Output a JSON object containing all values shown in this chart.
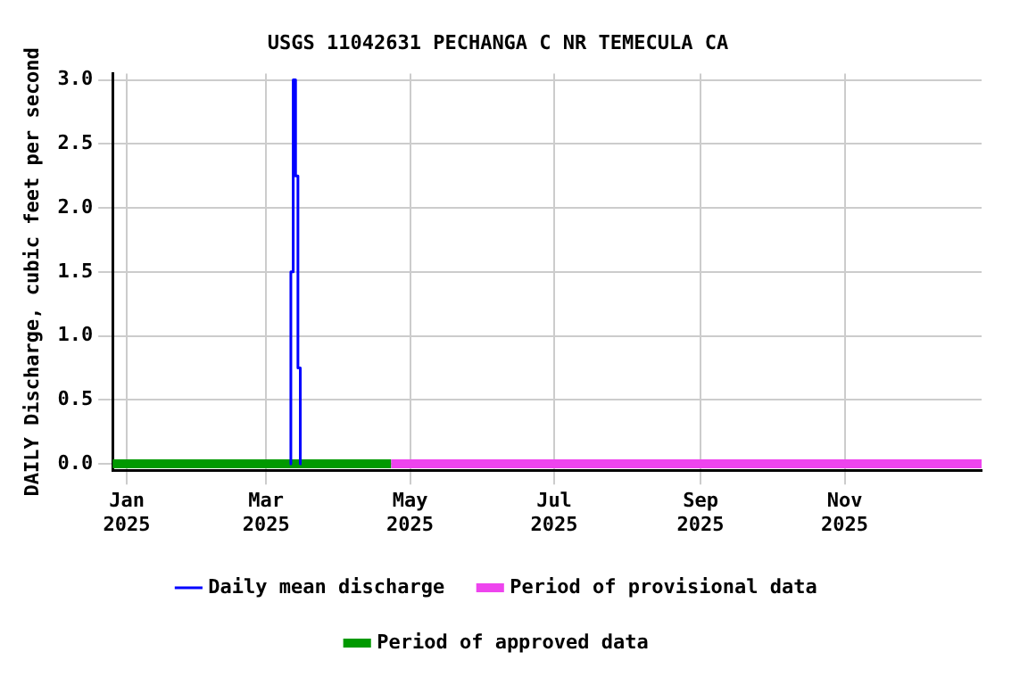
{
  "chart_data": {
    "type": "line",
    "title": "USGS 11042631 PECHANGA C NR TEMECULA CA",
    "ylabel": "DAILY Discharge, cubic feet per second",
    "xlim": [
      "2024-12-26",
      "2025-12-29"
    ],
    "xticks": [
      {
        "value": "2025-01-01",
        "label": "Jan 2025"
      },
      {
        "value": "2025-03-01",
        "label": "Mar 2025"
      },
      {
        "value": "2025-05-01",
        "label": "May 2025"
      },
      {
        "value": "2025-07-01",
        "label": "Jul 2025"
      },
      {
        "value": "2025-09-01",
        "label": "Sep 2025"
      },
      {
        "value": "2025-11-01",
        "label": "Nov 2025"
      }
    ],
    "ylim": [
      -0.05,
      3.05
    ],
    "yticks": [
      {
        "value": 0,
        "label": "0.0"
      },
      {
        "value": 0.5,
        "label": "0.5"
      },
      {
        "value": 1,
        "label": "1.0"
      },
      {
        "value": 1.5,
        "label": "1.5"
      },
      {
        "value": 2,
        "label": "2.0"
      },
      {
        "value": 2.5,
        "label": "2.5"
      },
      {
        "value": 3,
        "label": "3.0"
      }
    ],
    "grid": true,
    "legend": "bottom",
    "line_style": "solid",
    "marker": "none",
    "series": [
      {
        "name": "Daily mean discharge",
        "color": "#0000ff",
        "type": "step",
        "x": [
          "2025-03-11",
          "2025-03-12",
          "2025-03-13",
          "2025-03-14",
          "2025-03-15",
          "2025-03-16"
        ],
        "values": [
          0,
          1.5,
          3.0,
          2.25,
          0.75,
          0
        ]
      },
      {
        "name": "Period of provisional data",
        "color": "#ee44ee",
        "x": [
          "2025-04-23",
          "2025-12-29"
        ],
        "values": [
          0,
          0
        ]
      },
      {
        "name": "Period of approved data",
        "color": "#009900",
        "x": [
          "2024-12-26",
          "2025-04-23"
        ],
        "values": [
          0,
          0
        ]
      }
    ]
  }
}
